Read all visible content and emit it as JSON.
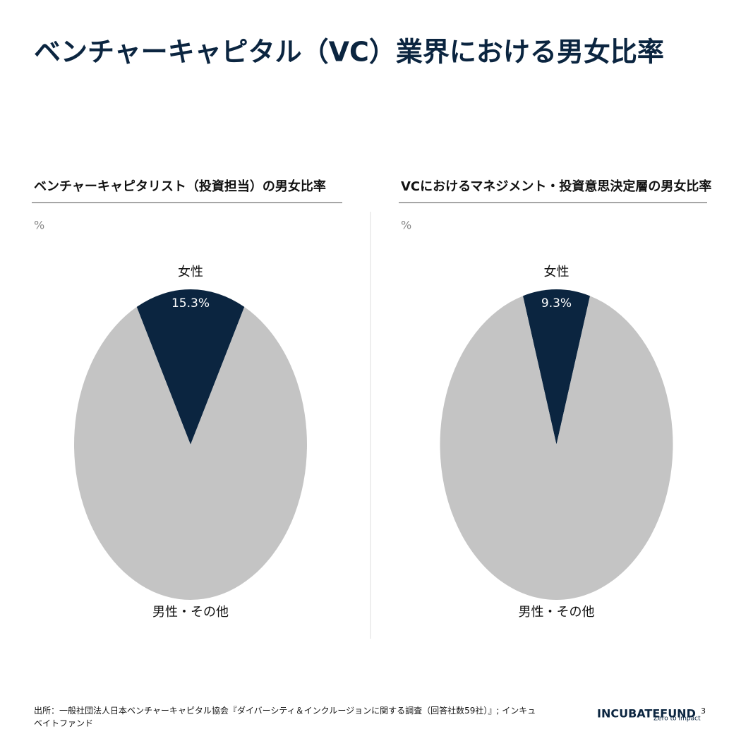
{
  "title": "ベンチャーキャピタル（VC）業界における男女比率",
  "source": "出所：一般社団法人日本ベンチャーキャピタル協会『ダイバーシティ＆インクルージョンに関する調査（回答社数59社）』; インキュベイトファンド",
  "logo": "INCUBATEFUND",
  "logo_tagline": "Zero to Impact",
  "page_number": "3",
  "chart_data": [
    {
      "type": "pie",
      "title": "ベンチャーキャピタリスト（投資担当）の男女比率",
      "unit_label": "%",
      "categories": [
        "女性",
        "男性・その他"
      ],
      "values": [
        15.3,
        84.7
      ],
      "value_labels": [
        "15.3%",
        null
      ],
      "colors": [
        "#0b2540",
        "#c4c4c4"
      ]
    },
    {
      "type": "pie",
      "title": "VCにおけるマネジメント・投資意思決定層の男女比率",
      "unit_label": "%",
      "categories": [
        "女性",
        "男性・その他"
      ],
      "values": [
        9.3,
        90.7
      ],
      "value_labels": [
        "9.3%",
        null
      ],
      "colors": [
        "#0b2540",
        "#c4c4c4"
      ]
    }
  ]
}
